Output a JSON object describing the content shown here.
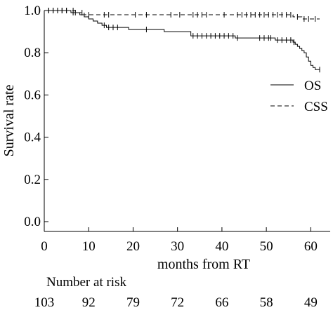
{
  "chart_data": {
    "type": "line",
    "subtype": "kaplan-meier",
    "title": "",
    "xlabel": "months from RT",
    "ylabel": "Survival rate",
    "xlim": [
      0,
      62
    ],
    "ylim": [
      0,
      1.0
    ],
    "x_ticks": [
      0,
      10,
      20,
      30,
      40,
      50,
      60
    ],
    "y_ticks": [
      0.0,
      0.2,
      0.4,
      0.6,
      0.8,
      1.0
    ],
    "y_tick_labels": [
      "0.0",
      "0.2",
      "0.4",
      "0.6",
      "0.8",
      "1.0"
    ],
    "grid": false,
    "legend_position": "right",
    "series": [
      {
        "name": "OS",
        "line_style": "solid",
        "step_x": [
          0,
          6,
          8,
          9,
          10,
          11,
          12,
          13,
          14,
          19,
          27,
          33,
          43,
          52,
          56,
          56.5,
          57,
          57.5,
          58,
          58.5,
          59,
          59.5,
          60,
          60.5,
          61,
          62
        ],
        "step_y": [
          1.0,
          0.99,
          0.98,
          0.97,
          0.96,
          0.95,
          0.94,
          0.93,
          0.92,
          0.91,
          0.9,
          0.88,
          0.87,
          0.86,
          0.85,
          0.84,
          0.83,
          0.82,
          0.81,
          0.8,
          0.78,
          0.76,
          0.74,
          0.73,
          0.72,
          0.72
        ],
        "censor_x": [
          1,
          2,
          3,
          4,
          5,
          6.5,
          7,
          13.5,
          14.5,
          15.5,
          16.5,
          23,
          33.5,
          34.5,
          35.5,
          36.5,
          37.5,
          38.5,
          39.5,
          40.5,
          41.5,
          42.5,
          43.5,
          48.5,
          49.5,
          50.5,
          51,
          52.5,
          53.5,
          54.5,
          55.5,
          56.2,
          62
        ]
      },
      {
        "name": "CSS",
        "line_style": "dashed",
        "step_x": [
          0,
          7,
          9,
          56,
          58,
          62
        ],
        "step_y": [
          1.0,
          0.99,
          0.98,
          0.97,
          0.96,
          0.96
        ],
        "censor_x": [
          1,
          2,
          3,
          4,
          5,
          6.5,
          8.5,
          10,
          13.5,
          14.5,
          20.5,
          23,
          28.5,
          30.5,
          33.5,
          34.5,
          35.5,
          36.5,
          40.5,
          43.5,
          44.5,
          45.5,
          46.5,
          47.5,
          48.5,
          49.5,
          50.5,
          51.5,
          52.5,
          53.5,
          54.5,
          55.5,
          57,
          58.5,
          59.5,
          61
        ]
      }
    ],
    "number_at_risk": {
      "label": "Number at risk",
      "times": [
        0,
        10,
        20,
        30,
        40,
        50,
        60
      ],
      "counts": [
        "103",
        "92",
        "79",
        "72",
        "66",
        "58",
        "49"
      ]
    }
  }
}
